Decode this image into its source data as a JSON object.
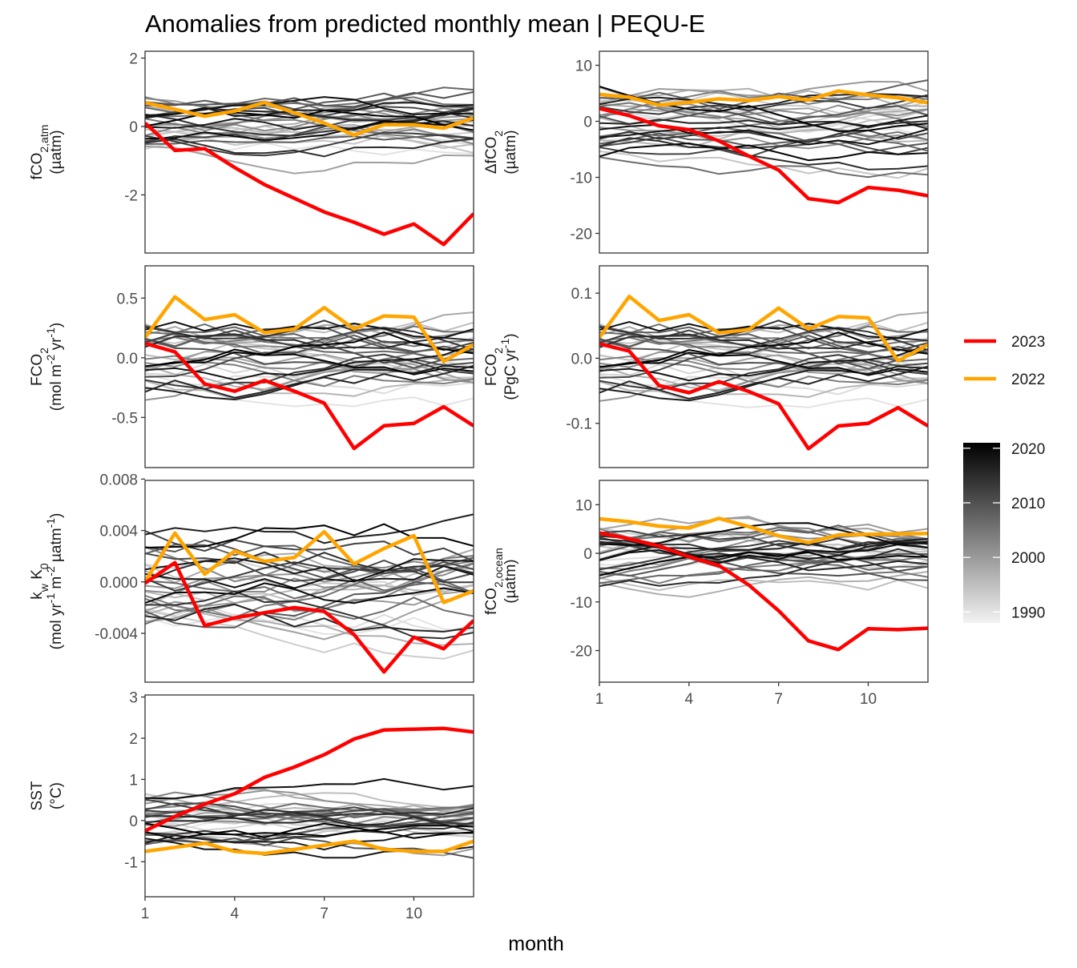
{
  "title": "Anomalies from predicted monthly mean | PEQU-E",
  "xlabel": "month",
  "chart_data": [
    {
      "type": "line",
      "id": "fco2atm",
      "ylabel_lines": [
        [
          "fCO",
          {
            "sub": "2,atm"
          }
        ],
        [
          "(µatm)"
        ]
      ],
      "ylim": [
        -3.7,
        2.2
      ],
      "yticks": [
        2,
        0,
        -2
      ],
      "ytick_labels": [
        "2",
        "0",
        "-2"
      ],
      "xlim": [
        1,
        12
      ],
      "show_x_axis": false,
      "bg": {
        "amp": 1.1,
        "seed": 11
      },
      "series": [
        {
          "name": "2023",
          "color": "#ff0000",
          "values": [
            0.1,
            -0.7,
            -0.65,
            -1.2,
            -1.7,
            -2.1,
            -2.5,
            -2.8,
            -3.15,
            -2.85,
            -3.45,
            -2.55
          ]
        },
        {
          "name": "2022",
          "color": "#ffa500",
          "values": [
            0.7,
            0.5,
            0.3,
            0.45,
            0.7,
            0.4,
            0.1,
            -0.25,
            0.05,
            0.05,
            -0.05,
            0.25
          ]
        }
      ]
    },
    {
      "type": "line",
      "id": "dfco2",
      "ylabel_lines": [
        [
          "ΔfCO",
          {
            "sub": "2"
          }
        ],
        [
          "(µatm)"
        ]
      ],
      "ylim": [
        -23.5,
        12.5
      ],
      "yticks": [
        10,
        0,
        -10,
        -20
      ],
      "ytick_labels": [
        "10",
        "0",
        "-10",
        "-20"
      ],
      "xlim": [
        1,
        12
      ],
      "show_x_axis": false,
      "bg": {
        "amp": 7.5,
        "seed": 23
      },
      "series": [
        {
          "name": "2023",
          "color": "#ff0000",
          "values": [
            2.3,
            1.0,
            -0.8,
            -1.5,
            -3.5,
            -6.2,
            -8.7,
            -13.8,
            -14.5,
            -11.8,
            -12.3,
            -13.3
          ]
        },
        {
          "name": "2022",
          "color": "#ffa500",
          "values": [
            4.8,
            4.3,
            2.9,
            3.4,
            4.0,
            3.7,
            4.4,
            3.8,
            5.4,
            4.7,
            4.2,
            3.3
          ]
        }
      ]
    },
    {
      "type": "line",
      "id": "fco2flux",
      "ylabel_lines": [
        [
          "FCO",
          {
            "sub": "2"
          }
        ],
        [
          "(mol m",
          {
            "sup": "-2"
          },
          " yr",
          {
            "sup": "-1"
          },
          ")"
        ]
      ],
      "ylim": [
        -0.92,
        0.77
      ],
      "yticks": [
        0.5,
        0.0,
        -0.5
      ],
      "ytick_labels": [
        "0.5",
        "0.0",
        "-0.5"
      ],
      "xlim": [
        1,
        12
      ],
      "show_x_axis": false,
      "bg": {
        "amp": 0.42,
        "seed": 37
      },
      "series": [
        {
          "name": "2023",
          "color": "#ff0000",
          "values": [
            0.12,
            0.05,
            -0.22,
            -0.28,
            -0.19,
            -0.28,
            -0.38,
            -0.76,
            -0.57,
            -0.55,
            -0.41,
            -0.57
          ]
        },
        {
          "name": "2022",
          "color": "#ffa500",
          "values": [
            0.17,
            0.51,
            0.32,
            0.36,
            0.21,
            0.24,
            0.42,
            0.24,
            0.35,
            0.34,
            -0.03,
            0.11
          ]
        }
      ]
    },
    {
      "type": "line",
      "id": "fco2pg",
      "ylabel_lines": [
        [
          "FCO",
          {
            "sub": "2"
          }
        ],
        [
          "(PgC yr",
          {
            "sup": "-1"
          },
          ")"
        ]
      ],
      "ylim": [
        -0.168,
        0.142
      ],
      "yticks": [
        0.1,
        0.0,
        -0.1
      ],
      "ytick_labels": [
        "0.1",
        "0.0",
        "-0.1"
      ],
      "xlim": [
        1,
        12
      ],
      "show_x_axis": false,
      "bg": {
        "amp": 0.078,
        "seed": 37
      },
      "series": [
        {
          "name": "2023",
          "color": "#ff0000",
          "values": [
            0.022,
            0.011,
            -0.042,
            -0.053,
            -0.036,
            -0.051,
            -0.07,
            -0.139,
            -0.104,
            -0.1,
            -0.076,
            -0.104
          ]
        },
        {
          "name": "2022",
          "color": "#ffa500",
          "values": [
            0.032,
            0.095,
            0.058,
            0.067,
            0.039,
            0.044,
            0.077,
            0.045,
            0.064,
            0.062,
            -0.004,
            0.021
          ]
        }
      ]
    },
    {
      "type": "line",
      "id": "kwk0",
      "ylabel_lines": [
        [
          "k",
          {
            "sub": "w"
          },
          " K",
          {
            "sub": "0"
          }
        ],
        [
          "(mol yr",
          {
            "sup": "-1"
          },
          " m",
          {
            "sup": "-2"
          },
          " µatm",
          {
            "sup": "-1"
          },
          ")"
        ]
      ],
      "ylim": [
        -0.0078,
        0.0079
      ],
      "yticks": [
        0.008,
        0.004,
        0.0,
        -0.004
      ],
      "ytick_labels": [
        "0.008",
        "0.004",
        "0.000",
        "-0.004"
      ],
      "xlim": [
        1,
        12
      ],
      "show_x_axis": false,
      "bg": {
        "amp": 0.0048,
        "seed": 53
      },
      "series": [
        {
          "name": "2023",
          "color": "#ff0000",
          "values": [
            -0.0001,
            0.0015,
            -0.0034,
            -0.0028,
            -0.0024,
            -0.002,
            -0.0023,
            -0.0041,
            -0.007,
            -0.0043,
            -0.0052,
            -0.003
          ]
        },
        {
          "name": "2022",
          "color": "#ffa500",
          "values": [
            0.0,
            0.0038,
            0.0006,
            0.0024,
            0.0016,
            0.0019,
            0.0039,
            0.0014,
            0.0026,
            0.0036,
            -0.0016,
            -0.0007
          ]
        }
      ]
    },
    {
      "type": "line",
      "id": "fco2ocean",
      "ylabel_lines": [
        [
          "fCO",
          {
            "sub": "2,ocean"
          }
        ],
        [
          "(µatm)"
        ]
      ],
      "ylim": [
        -26.5,
        15
      ],
      "yticks": [
        10,
        0,
        -10,
        -20
      ],
      "ytick_labels": [
        "10",
        "0",
        "-10",
        "-20"
      ],
      "xlim": [
        1,
        12
      ],
      "show_x_axis": true,
      "xticks": [
        1,
        4,
        7,
        10
      ],
      "xtick_labels": [
        "1",
        "4",
        "7",
        "10"
      ],
      "bg": {
        "amp": 8.5,
        "seed": 71
      },
      "series": [
        {
          "name": "2023",
          "color": "#ff0000",
          "values": [
            4.2,
            3.0,
            1.5,
            -0.7,
            -2.5,
            -6.5,
            -11.8,
            -18.0,
            -19.8,
            -15.5,
            -15.7,
            -15.4
          ]
        },
        {
          "name": "2022",
          "color": "#ffa500",
          "values": [
            7.1,
            6.5,
            5.6,
            5.2,
            7.2,
            5.5,
            3.6,
            2.2,
            3.8,
            3.9,
            4.0,
            4.1
          ]
        }
      ]
    },
    {
      "type": "line",
      "id": "sst",
      "ylabel_lines": [
        [
          "SST"
        ],
        [
          "(°C)"
        ]
      ],
      "ylim": [
        -1.85,
        3.05
      ],
      "yticks": [
        3,
        2,
        1,
        0,
        -1
      ],
      "ytick_labels": [
        "3",
        "2",
        "1",
        "0",
        "-1"
      ],
      "xlim": [
        1,
        12
      ],
      "show_x_axis": true,
      "xticks": [
        1,
        4,
        7,
        10
      ],
      "xtick_labels": [
        "1",
        "4",
        "7",
        "10"
      ],
      "bg": {
        "amp": 0.85,
        "seed": 89
      },
      "series": [
        {
          "name": "2023",
          "color": "#ff0000",
          "values": [
            -0.25,
            0.1,
            0.4,
            0.65,
            1.05,
            1.3,
            1.6,
            1.98,
            2.2,
            2.22,
            2.24,
            2.15
          ]
        },
        {
          "name": "2022",
          "color": "#ffa500",
          "values": [
            -0.75,
            -0.65,
            -0.55,
            -0.75,
            -0.8,
            -0.7,
            -0.6,
            -0.5,
            -0.7,
            -0.75,
            -0.75,
            -0.5
          ]
        }
      ]
    }
  ],
  "legend": {
    "highlight": [
      {
        "label": "2023",
        "color": "#ff0000"
      },
      {
        "label": "2022",
        "color": "#ffa500"
      }
    ],
    "colorbar": {
      "ticks": [
        2020,
        2010,
        2000,
        1990
      ],
      "tick_labels": [
        "2020",
        "2010",
        "2000",
        "1990"
      ],
      "range": [
        1988,
        2021
      ],
      "color_low": "#f2f2f2",
      "color_high": "#000000"
    }
  },
  "background_years": [
    1990,
    1991,
    1992,
    1993,
    1994,
    1995,
    1996,
    1997,
    1998,
    1999,
    2000,
    2001,
    2002,
    2003,
    2004,
    2005,
    2006,
    2007,
    2008,
    2009,
    2010,
    2011,
    2012,
    2013,
    2014,
    2015,
    2016,
    2017,
    2018,
    2019,
    2020,
    2021
  ]
}
